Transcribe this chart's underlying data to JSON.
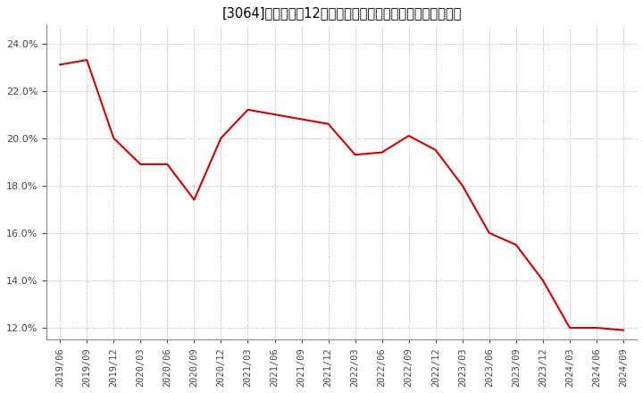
{
  "title": "[　3064　] 売上高の12か月移動合計の対前年同期増減率の推移",
  "title_raw": "[3064]　売上高の12か月移動合計の対前年同期増減率の推移",
  "dates": [
    "2019/06",
    "2019/09",
    "2019/12",
    "2020/03",
    "2020/06",
    "2020/09",
    "2020/12",
    "2021/03",
    "2021/06",
    "2021/09",
    "2021/12",
    "2022/03",
    "2022/06",
    "2022/09",
    "2022/12",
    "2023/03",
    "2023/06",
    "2023/09",
    "2023/12",
    "2024/03",
    "2024/06",
    "2024/09"
  ],
  "values": [
    0.231,
    0.233,
    0.2,
    0.189,
    0.189,
    0.174,
    0.2,
    0.212,
    0.21,
    0.208,
    0.206,
    0.193,
    0.194,
    0.201,
    0.195,
    0.18,
    0.16,
    0.155,
    0.14,
    0.12,
    0.12,
    0.119
  ],
  "line_color": "#cc0000",
  "background_color": "#ffffff",
  "plot_bg_color": "#ffffff",
  "grid_color": "#aaaaaa",
  "ylim": [
    0.115,
    0.248
  ],
  "yticks": [
    0.12,
    0.14,
    0.16,
    0.18,
    0.2,
    0.22,
    0.24
  ],
  "title_fontsize": 10.5,
  "tick_fontsize": 8,
  "xtick_fontsize": 7.5
}
